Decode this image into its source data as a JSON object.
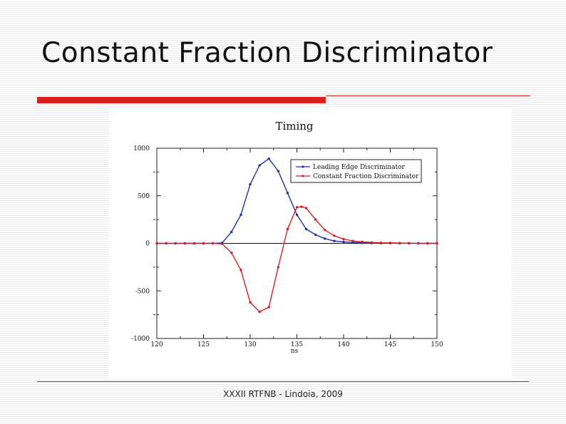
{
  "slide": {
    "title": "Constant Fraction Discriminator",
    "footer": "XXXII RTFNB - Lindoia, 2009"
  },
  "colors": {
    "accent": "#d71f1f",
    "leading_edge": "#1f2fa8",
    "constant_fraction": "#d42020"
  },
  "chart_data": {
    "type": "line",
    "title": "Timing",
    "xlabel": "ns",
    "ylabel": "",
    "xlim": [
      120,
      150
    ],
    "ylim": [
      -1000,
      1000
    ],
    "x_ticks": [
      120,
      125,
      130,
      135,
      140,
      145,
      150
    ],
    "y_ticks": [
      -1000,
      -500,
      0,
      500,
      1000
    ],
    "y_tick_labels": [
      "-1000",
      "-500",
      "0",
      "500",
      "1000"
    ],
    "grid": false,
    "zero_line": true,
    "legend_position": "top-right",
    "series": [
      {
        "name": "Leading Edge Discriminator",
        "x": [
          120,
          121,
          122,
          123,
          124,
          125,
          126,
          127,
          128,
          129,
          130,
          131,
          132,
          133,
          134,
          135,
          136,
          137,
          138,
          139,
          140,
          141,
          142,
          143,
          144,
          145,
          146,
          147,
          148,
          149,
          150
        ],
        "y": [
          0,
          0,
          0,
          0,
          0,
          0,
          0,
          5,
          120,
          300,
          620,
          820,
          890,
          760,
          530,
          300,
          150,
          90,
          50,
          25,
          15,
          10,
          5,
          3,
          2,
          2,
          1,
          1,
          0,
          0,
          0
        ]
      },
      {
        "name": "Constant Fraction Discriminator",
        "x": [
          120,
          121,
          122,
          123,
          124,
          125,
          126,
          127,
          128,
          129,
          130,
          131,
          132,
          133,
          134,
          135,
          135.5,
          136,
          137,
          138,
          139,
          140,
          141,
          142,
          143,
          144,
          145,
          146,
          147,
          148,
          149,
          150
        ],
        "y": [
          0,
          0,
          0,
          0,
          0,
          0,
          0,
          -5,
          -100,
          -280,
          -620,
          -720,
          -670,
          -250,
          150,
          380,
          385,
          370,
          250,
          140,
          80,
          45,
          25,
          15,
          10,
          6,
          5,
          3,
          2,
          1,
          0,
          0
        ]
      }
    ]
  }
}
